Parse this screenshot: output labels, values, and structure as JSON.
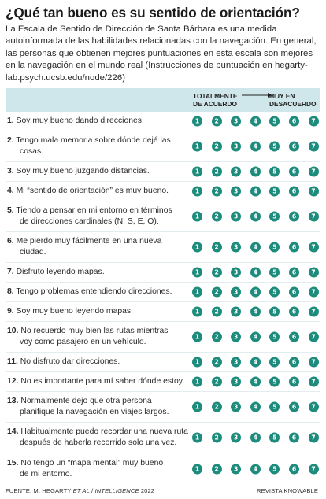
{
  "title": "¿Qué tan bueno es su sentido de orientación?",
  "intro": "La Escala de Sentido de Dirección de Santa Bárbara es una medida autoinformada de las habilidades relacionadas con la navegación. En general, las personas que obtienen mejores puntuaciones en esta escala son mejores en la navegación en el mundo real (Instrucciones de puntuación en hegarty-lab.psych.ucsb.edu/node/226)",
  "header": {
    "left_line1": "TOTALMENTE",
    "left_line2": "DE ACUERDO",
    "right_line1": "MUY EN",
    "right_line2": "DESACUERDO"
  },
  "scale": [
    "1",
    "2",
    "3",
    "4",
    "5",
    "6",
    "7"
  ],
  "colors": {
    "dot": "#1d8c7c",
    "header_band": "#cfe6ea"
  },
  "questions": [
    {
      "num": "1.",
      "line1": "Soy muy bueno dando direcciones.",
      "line2": ""
    },
    {
      "num": "2.",
      "line1": "Tengo mala memoria sobre dónde dejé las",
      "line2": "cosas."
    },
    {
      "num": "3.",
      "line1": "Soy muy bueno juzgando distancias.",
      "line2": ""
    },
    {
      "num": "4.",
      "line1": "Mi “sentido de orientación” es muy bueno.",
      "line2": ""
    },
    {
      "num": "5.",
      "line1": "Tiendo a pensar en mi entorno en términos",
      "line2": "de direcciones cardinales (N, S, E, O)."
    },
    {
      "num": "6.",
      "line1": "Me pierdo muy fácilmente en una nueva",
      "line2": "ciudad."
    },
    {
      "num": "7.",
      "line1": "Disfruto leyendo mapas.",
      "line2": ""
    },
    {
      "num": "8.",
      "line1": "Tengo problemas entendiendo direcciones.",
      "line2": ""
    },
    {
      "num": "9.",
      "line1": "Soy muy bueno leyendo mapas.",
      "line2": ""
    },
    {
      "num": "10.",
      "line1": "No recuerdo muy bien las rutas mientras",
      "line2": "voy como pasajero en un vehículo."
    },
    {
      "num": "11.",
      "line1": "No disfruto dar direcciones.",
      "line2": ""
    },
    {
      "num": "12.",
      "line1": "No es importante para mí saber dónde estoy.",
      "line2": ""
    },
    {
      "num": "13.",
      "line1": "Normalmente dejo que otra persona",
      "line2": "planifique la navegación en viajes largos."
    },
    {
      "num": "14.",
      "line1": "Habitualmente puedo recordar una nueva ruta",
      "line2": "después de haberla recorrido solo una vez."
    },
    {
      "num": "15.",
      "line1": "No tengo un “mapa mental” muy bueno",
      "line2": "de mi entorno."
    }
  ],
  "footer": {
    "source_prefix": "FUENTE: M. HEGARTY ",
    "source_italic": "ET AL",
    "source_mid": " / ",
    "source_journal": "INTELLIGENCE",
    "source_year": " 2022",
    "credit": "REVISTA KNOWABLE"
  }
}
